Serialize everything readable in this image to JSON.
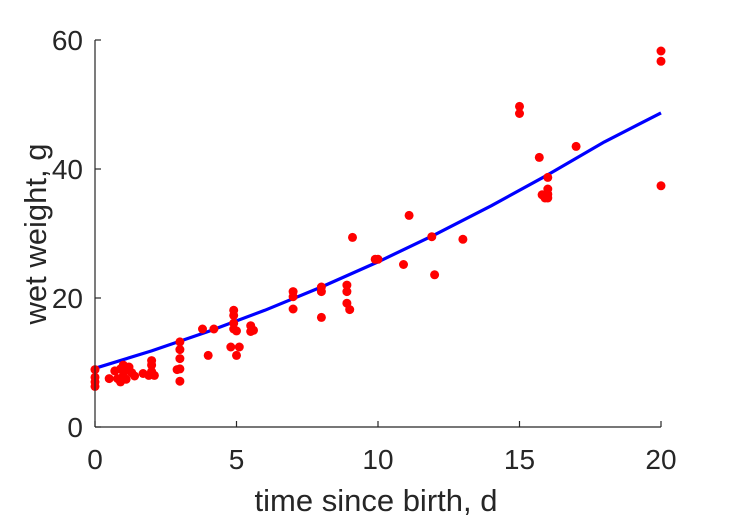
{
  "chart_data": {
    "type": "scatter",
    "title": "",
    "xlabel": "time since birth, d",
    "ylabel": "wet weight, g",
    "xlim": [
      0,
      20
    ],
    "ylim": [
      0,
      60
    ],
    "xticks": [
      0,
      5,
      10,
      15,
      20
    ],
    "yticks": [
      0,
      20,
      40,
      60
    ],
    "grid": false,
    "colors": {
      "points": "#ff0000",
      "curve": "#0000ff",
      "axes": "#262626"
    },
    "series": [
      {
        "type": "scatter",
        "points": [
          [
            0,
            6.3
          ],
          [
            0,
            7.0
          ],
          [
            0,
            7.7
          ],
          [
            0,
            8.9
          ],
          [
            0.5,
            7.5
          ],
          [
            0.7,
            8.7
          ],
          [
            0.8,
            7.5
          ],
          [
            0.9,
            7.0
          ],
          [
            0.9,
            9.0
          ],
          [
            1.0,
            9.6
          ],
          [
            1.0,
            8.0
          ],
          [
            1.1,
            7.4
          ],
          [
            1.1,
            8.9
          ],
          [
            1.2,
            9.3
          ],
          [
            1.3,
            8.4
          ],
          [
            1.4,
            7.9
          ],
          [
            1.7,
            8.3
          ],
          [
            1.9,
            8.0
          ],
          [
            2.0,
            8.6
          ],
          [
            2.0,
            9.6
          ],
          [
            2.0,
            10.3
          ],
          [
            2.1,
            8.0
          ],
          [
            2.9,
            8.9
          ],
          [
            3.0,
            7.1
          ],
          [
            3.0,
            9.0
          ],
          [
            3.0,
            10.6
          ],
          [
            3.0,
            12.0
          ],
          [
            3.0,
            13.2
          ],
          [
            3.8,
            15.2
          ],
          [
            4.0,
            11.1
          ],
          [
            4.2,
            15.2
          ],
          [
            4.8,
            12.4
          ],
          [
            4.9,
            15.2
          ],
          [
            4.9,
            16.1
          ],
          [
            4.9,
            17.3
          ],
          [
            4.9,
            18.1
          ],
          [
            5.0,
            11.1
          ],
          [
            5.0,
            14.9
          ],
          [
            5.1,
            12.4
          ],
          [
            5.5,
            14.8
          ],
          [
            5.5,
            15.7
          ],
          [
            5.6,
            15.0
          ],
          [
            7.0,
            18.3
          ],
          [
            7.0,
            20.2
          ],
          [
            7.0,
            21.0
          ],
          [
            8.0,
            17.0
          ],
          [
            8.0,
            21.0
          ],
          [
            8.0,
            21.7
          ],
          [
            8.9,
            19.2
          ],
          [
            8.9,
            21.0
          ],
          [
            8.9,
            22.0
          ],
          [
            9.0,
            18.2
          ],
          [
            9.1,
            29.4
          ],
          [
            9.9,
            26.0
          ],
          [
            10.0,
            26.0
          ],
          [
            10.9,
            25.2
          ],
          [
            11.1,
            32.8
          ],
          [
            11.9,
            29.5
          ],
          [
            12.0,
            23.6
          ],
          [
            13.0,
            29.1
          ],
          [
            15.0,
            48.6
          ],
          [
            15.0,
            49.7
          ],
          [
            15.7,
            41.8
          ],
          [
            15.8,
            36.0
          ],
          [
            15.9,
            35.5
          ],
          [
            16.0,
            35.5
          ],
          [
            16.0,
            36.1
          ],
          [
            16.0,
            36.9
          ],
          [
            16.0,
            38.7
          ],
          [
            17.0,
            43.5
          ],
          [
            20.0,
            37.4
          ],
          [
            20.0,
            56.7
          ],
          [
            20.0,
            58.3
          ]
        ]
      },
      {
        "type": "line",
        "points": [
          [
            0,
            9.1
          ],
          [
            2,
            11.8
          ],
          [
            4,
            14.8
          ],
          [
            6,
            18.1
          ],
          [
            8,
            21.7
          ],
          [
            10,
            25.6
          ],
          [
            12,
            29.8
          ],
          [
            14,
            34.3
          ],
          [
            16,
            39.1
          ],
          [
            18,
            44.2
          ],
          [
            20,
            48.7
          ]
        ]
      }
    ]
  }
}
